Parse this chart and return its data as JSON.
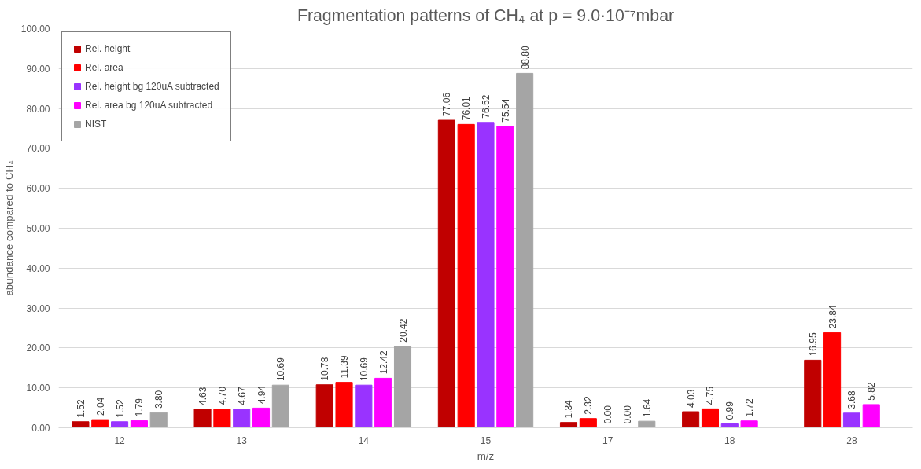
{
  "chart_data": {
    "type": "bar",
    "title": "Fragmentation patterns of CH₄ at p = 9.0·10⁻⁷mbar",
    "xlabel": "m/z",
    "ylabel": "abundance compared to CH₄",
    "categories": [
      "12",
      "13",
      "14",
      "15",
      "17",
      "18",
      "28"
    ],
    "series": [
      {
        "name": "Rel. height",
        "color": "#c00000",
        "values": [
          1.52,
          4.63,
          10.78,
          77.06,
          1.34,
          4.03,
          16.95
        ],
        "value_labels": [
          "1.52",
          "4.63",
          "10.78",
          "77.06",
          "1.34",
          "4.03",
          "16.95"
        ]
      },
      {
        "name": "Rel. area",
        "color": "#ff0000",
        "values": [
          2.04,
          4.7,
          11.39,
          76.01,
          2.32,
          4.75,
          23.84
        ],
        "value_labels": [
          "2.04",
          "4.70",
          "11.39",
          "76.01",
          "2.32",
          "4.75",
          "23.84"
        ]
      },
      {
        "name": "Rel. height bg 120uA subtracted",
        "color": "#9933ff",
        "values": [
          1.52,
          4.67,
          10.69,
          76.52,
          0.0,
          0.99,
          3.68
        ],
        "value_labels": [
          "1.52",
          "4.67",
          "10.69",
          "76.52",
          "0.00",
          "0.99",
          "3.68"
        ]
      },
      {
        "name": "Rel. area bg 120uA subtracted",
        "color": "#ff00ff",
        "values": [
          1.79,
          4.94,
          12.42,
          75.54,
          0.0,
          1.72,
          5.82
        ],
        "value_labels": [
          "1.79",
          "4.94",
          "12.42",
          "75.54",
          "0.00",
          "1.72",
          "5.82"
        ]
      },
      {
        "name": "NIST",
        "color": "#a5a5a5",
        "values": [
          3.8,
          10.69,
          20.42,
          88.8,
          1.64,
          null,
          null
        ],
        "value_labels": [
          "3.80",
          "10.69",
          "20.42",
          "88.80",
          "1.64",
          null,
          null
        ]
      }
    ],
    "ylim": [
      0,
      100
    ],
    "yticks": [
      {
        "value": 0,
        "label": "0.00"
      },
      {
        "value": 10,
        "label": "10.00"
      },
      {
        "value": 20,
        "label": "20.00"
      },
      {
        "value": 30,
        "label": "30.00"
      },
      {
        "value": 40,
        "label": "40.00"
      },
      {
        "value": 50,
        "label": "50.00"
      },
      {
        "value": 60,
        "label": "60.00"
      },
      {
        "value": 70,
        "label": "70.00"
      },
      {
        "value": 80,
        "label": "80.00"
      },
      {
        "value": 90,
        "label": "90.00"
      },
      {
        "value": 100,
        "label": "100.00"
      }
    ],
    "grid": "y",
    "legend": "top left"
  }
}
